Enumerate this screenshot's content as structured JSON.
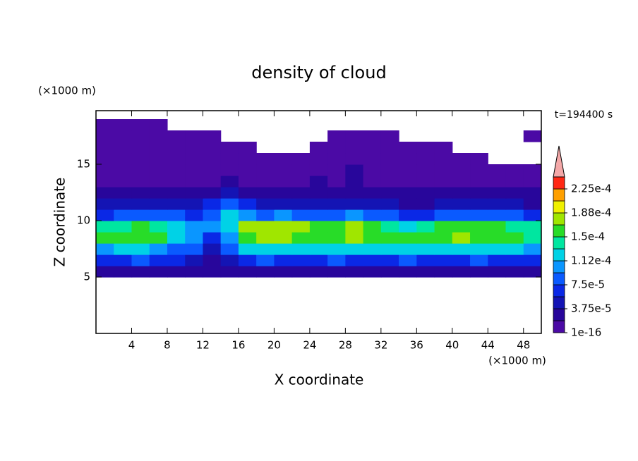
{
  "chart_data": {
    "type": "contour",
    "title": "density of cloud",
    "x_label": "X coordinate",
    "y_label": "Z coordinate",
    "x_unit": "(×1000 m)",
    "y_unit": "(×1000 m)",
    "annotation": "t=194400 s",
    "xlim": [
      0,
      50
    ],
    "ylim": [
      0,
      19.75
    ],
    "xticks": [
      4,
      8,
      12,
      16,
      20,
      24,
      28,
      32,
      36,
      40,
      44,
      48
    ],
    "yticks": [
      5,
      10,
      15
    ],
    "x": [
      1,
      3,
      5,
      7,
      9,
      11,
      13,
      15,
      17,
      19,
      21,
      23,
      25,
      27,
      29,
      31,
      33,
      35,
      37,
      39,
      41,
      43,
      45,
      47,
      49
    ],
    "z": [
      0.5,
      1.5,
      2.5,
      3.5,
      4.5,
      5.5,
      6.5,
      7.5,
      8.5,
      9.5,
      10.5,
      11.5,
      12.5,
      13.5,
      14.5,
      15.5,
      16.5,
      17.5,
      18.5,
      19.5
    ],
    "values": [
      [
        null,
        null,
        null,
        null,
        null,
        null,
        null,
        null,
        null,
        null,
        null,
        null,
        null,
        null,
        null,
        null,
        null,
        null,
        null,
        null,
        null,
        null,
        null,
        null,
        null
      ],
      [
        null,
        null,
        null,
        null,
        null,
        null,
        null,
        null,
        null,
        null,
        null,
        null,
        null,
        null,
        null,
        null,
        null,
        null,
        null,
        null,
        null,
        null,
        null,
        null,
        null
      ],
      [
        null,
        null,
        null,
        null,
        null,
        null,
        null,
        null,
        null,
        null,
        null,
        null,
        null,
        null,
        null,
        null,
        null,
        null,
        null,
        null,
        null,
        null,
        null,
        null,
        null
      ],
      [
        null,
        null,
        null,
        null,
        null,
        null,
        null,
        null,
        null,
        null,
        null,
        null,
        null,
        null,
        null,
        null,
        null,
        null,
        null,
        null,
        null,
        null,
        null,
        null,
        null
      ],
      [
        null,
        null,
        null,
        null,
        null,
        null,
        null,
        null,
        null,
        null,
        null,
        null,
        null,
        null,
        null,
        null,
        null,
        null,
        null,
        null,
        null,
        null,
        null,
        null,
        null
      ],
      [
        2e-05,
        2.5e-05,
        3e-05,
        2.5e-05,
        2e-05,
        3e-05,
        2.5e-05,
        2e-05,
        2.5e-05,
        3e-05,
        2.5e-05,
        2e-05,
        3e-05,
        2.5e-05,
        2.5e-05,
        3e-05,
        2e-05,
        2.5e-05,
        3e-05,
        2.5e-05,
        2e-05,
        2.5e-05,
        3e-05,
        2.5e-05,
        2e-05
      ],
      [
        7e-05,
        6.5e-05,
        7.5e-05,
        7e-05,
        6e-05,
        4e-05,
        3e-05,
        5e-05,
        7e-05,
        7.5e-05,
        7e-05,
        6.5e-05,
        7e-05,
        7.5e-05,
        7e-05,
        6.5e-05,
        7e-05,
        7.5e-05,
        7e-05,
        6.5e-05,
        7e-05,
        7.5e-05,
        7e-05,
        6.5e-05,
        7e-05
      ],
      [
        0.00011,
        0.000115,
        0.00012,
        0.00011,
        9e-05,
        8e-05,
        4e-05,
        9e-05,
        0.000125,
        0.00013,
        0.000125,
        0.00012,
        0.00012,
        0.000125,
        0.00013,
        0.000125,
        0.00012,
        0.000115,
        0.00012,
        0.000125,
        0.00013,
        0.000125,
        0.00012,
        0.000115,
        0.00011
      ],
      [
        0.00015,
        0.000155,
        0.00016,
        0.00015,
        0.00013,
        0.00011,
        7e-05,
        0.00011,
        0.000165,
        0.00017,
        0.00017,
        0.00016,
        0.000155,
        0.000165,
        0.00017,
        0.000165,
        0.000155,
        0.00015,
        0.00016,
        0.000165,
        0.00017,
        0.000165,
        0.00016,
        0.00015,
        0.000145
      ],
      [
        0.00014,
        0.000145,
        0.00015,
        0.00014,
        0.00012,
        0.000105,
        0.00011,
        0.00013,
        0.00017,
        0.000175,
        0.000175,
        0.00017,
        0.00015,
        0.00016,
        0.00017,
        0.00016,
        0.00014,
        0.00013,
        0.00014,
        0.000155,
        0.00016,
        0.000155,
        0.00015,
        0.00014,
        0.000135
      ],
      [
        7e-05,
        8e-05,
        8.5e-05,
        8e-05,
        7.5e-05,
        7e-05,
        8e-05,
        0.000115,
        0.0001,
        9e-05,
        9.5e-05,
        9e-05,
        8.5e-05,
        9e-05,
        9.5e-05,
        9e-05,
        8e-05,
        7e-05,
        6.5e-05,
        7.5e-05,
        8e-05,
        8.5e-05,
        8e-05,
        7.5e-05,
        7e-05
      ],
      [
        4e-05,
        4.5e-05,
        5e-05,
        4.5e-05,
        4e-05,
        4.5e-05,
        6e-05,
        9e-05,
        6e-05,
        5e-05,
        5.5e-05,
        5e-05,
        4.5e-05,
        5e-05,
        5e-05,
        4.5e-05,
        4e-05,
        3.5e-05,
        3.5e-05,
        4e-05,
        4.5e-05,
        4.5e-05,
        4e-05,
        4e-05,
        3.5e-05
      ],
      [
        2e-05,
        2.5e-05,
        3e-05,
        2.5e-05,
        2.5e-05,
        3e-05,
        3.5e-05,
        5e-05,
        3.5e-05,
        3e-05,
        3e-05,
        2.5e-05,
        3e-05,
        3e-05,
        3e-05,
        3e-05,
        2.5e-05,
        2.5e-05,
        3e-05,
        2.5e-05,
        3e-05,
        2.5e-05,
        2.5e-05,
        2.5e-05,
        2e-05
      ],
      [
        1.2e-05,
        1.5e-05,
        1.6e-05,
        1.3e-05,
        1.2e-05,
        1.5e-05,
        1.7e-05,
        2.5e-05,
        1.8e-05,
        1.5e-05,
        1.2e-05,
        1.5e-05,
        1.9e-05,
        1.6e-05,
        2e-05,
        1.7e-05,
        1.4e-05,
        1.2e-05,
        1.5e-05,
        1.3e-05,
        1.5e-05,
        1.4e-05,
        1.3e-05,
        1.2e-05,
        1e-05
      ],
      [
        8e-06,
        9e-06,
        1e-05,
        8e-06,
        8e-06,
        9e-06,
        1e-05,
        1.2e-05,
        8e-06,
        8e-06,
        8e-06,
        9e-06,
        1e-05,
        1.2e-05,
        2e-05,
        1.5e-05,
        1e-05,
        8e-06,
        8e-06,
        8e-06,
        8e-06,
        8e-06,
        7e-06,
        7e-06,
        6e-06
      ],
      [
        5e-06,
        6e-06,
        6e-06,
        5e-06,
        5e-06,
        6e-06,
        5e-06,
        4e-06,
        5e-06,
        4e-06,
        4e-06,
        5e-06,
        6e-06,
        1e-05,
        1.5e-05,
        1e-05,
        6e-06,
        5e-06,
        5e-06,
        4e-06,
        4e-06,
        3e-06,
        null,
        null,
        null
      ],
      [
        5e-06,
        5e-06,
        5e-06,
        5e-06,
        4e-06,
        4e-06,
        4e-06,
        4e-06,
        3e-06,
        null,
        null,
        null,
        4e-06,
        5e-06,
        6e-06,
        5e-06,
        4e-06,
        4e-06,
        3e-06,
        3e-06,
        null,
        null,
        null,
        null,
        null
      ],
      [
        5e-06,
        5e-06,
        5e-06,
        4e-06,
        4e-06,
        3e-06,
        3e-06,
        null,
        null,
        null,
        null,
        null,
        null,
        3e-06,
        4e-06,
        3e-06,
        3e-06,
        null,
        null,
        null,
        null,
        null,
        null,
        null,
        3e-06
      ],
      [
        4e-06,
        4e-06,
        4e-06,
        3e-06,
        null,
        null,
        null,
        null,
        null,
        null,
        null,
        null,
        null,
        null,
        null,
        null,
        null,
        null,
        null,
        null,
        null,
        null,
        null,
        null,
        null
      ],
      [
        null,
        null,
        null,
        null,
        null,
        null,
        null,
        null,
        null,
        null,
        null,
        null,
        null,
        null,
        null,
        null,
        null,
        null,
        null,
        null,
        null,
        null,
        null,
        null,
        null
      ]
    ],
    "levels": [
      1e-16,
      1.875e-05,
      3.75e-05,
      5.625e-05,
      7.5e-05,
      9.375e-05,
      0.0001125,
      0.00013125,
      0.00015,
      0.00016875,
      0.0001875,
      0.00020625,
      0.000225,
      0.00024375
    ],
    "colors": [
      "#4b0aa5",
      "#28069b",
      "#1414b4",
      "#0a28e6",
      "#0a5aff",
      "#0a96ff",
      "#00d2e6",
      "#00e6a0",
      "#28dc28",
      "#a0e600",
      "#f0f000",
      "#ffa000",
      "#ff2814"
    ],
    "extend_color": "#f4a8a8",
    "colorbar_ticks": [
      {
        "value": 1e-16,
        "label": "1e-16"
      },
      {
        "value": 3.75e-05,
        "label": "3.75e-5"
      },
      {
        "value": 7.5e-05,
        "label": "7.5e-5"
      },
      {
        "value": 0.0001125,
        "label": "1.12e-4"
      },
      {
        "value": 0.00015,
        "label": "1.5e-4"
      },
      {
        "value": 0.0001875,
        "label": "1.88e-4"
      },
      {
        "value": 0.000225,
        "label": "2.25e-4"
      }
    ]
  }
}
